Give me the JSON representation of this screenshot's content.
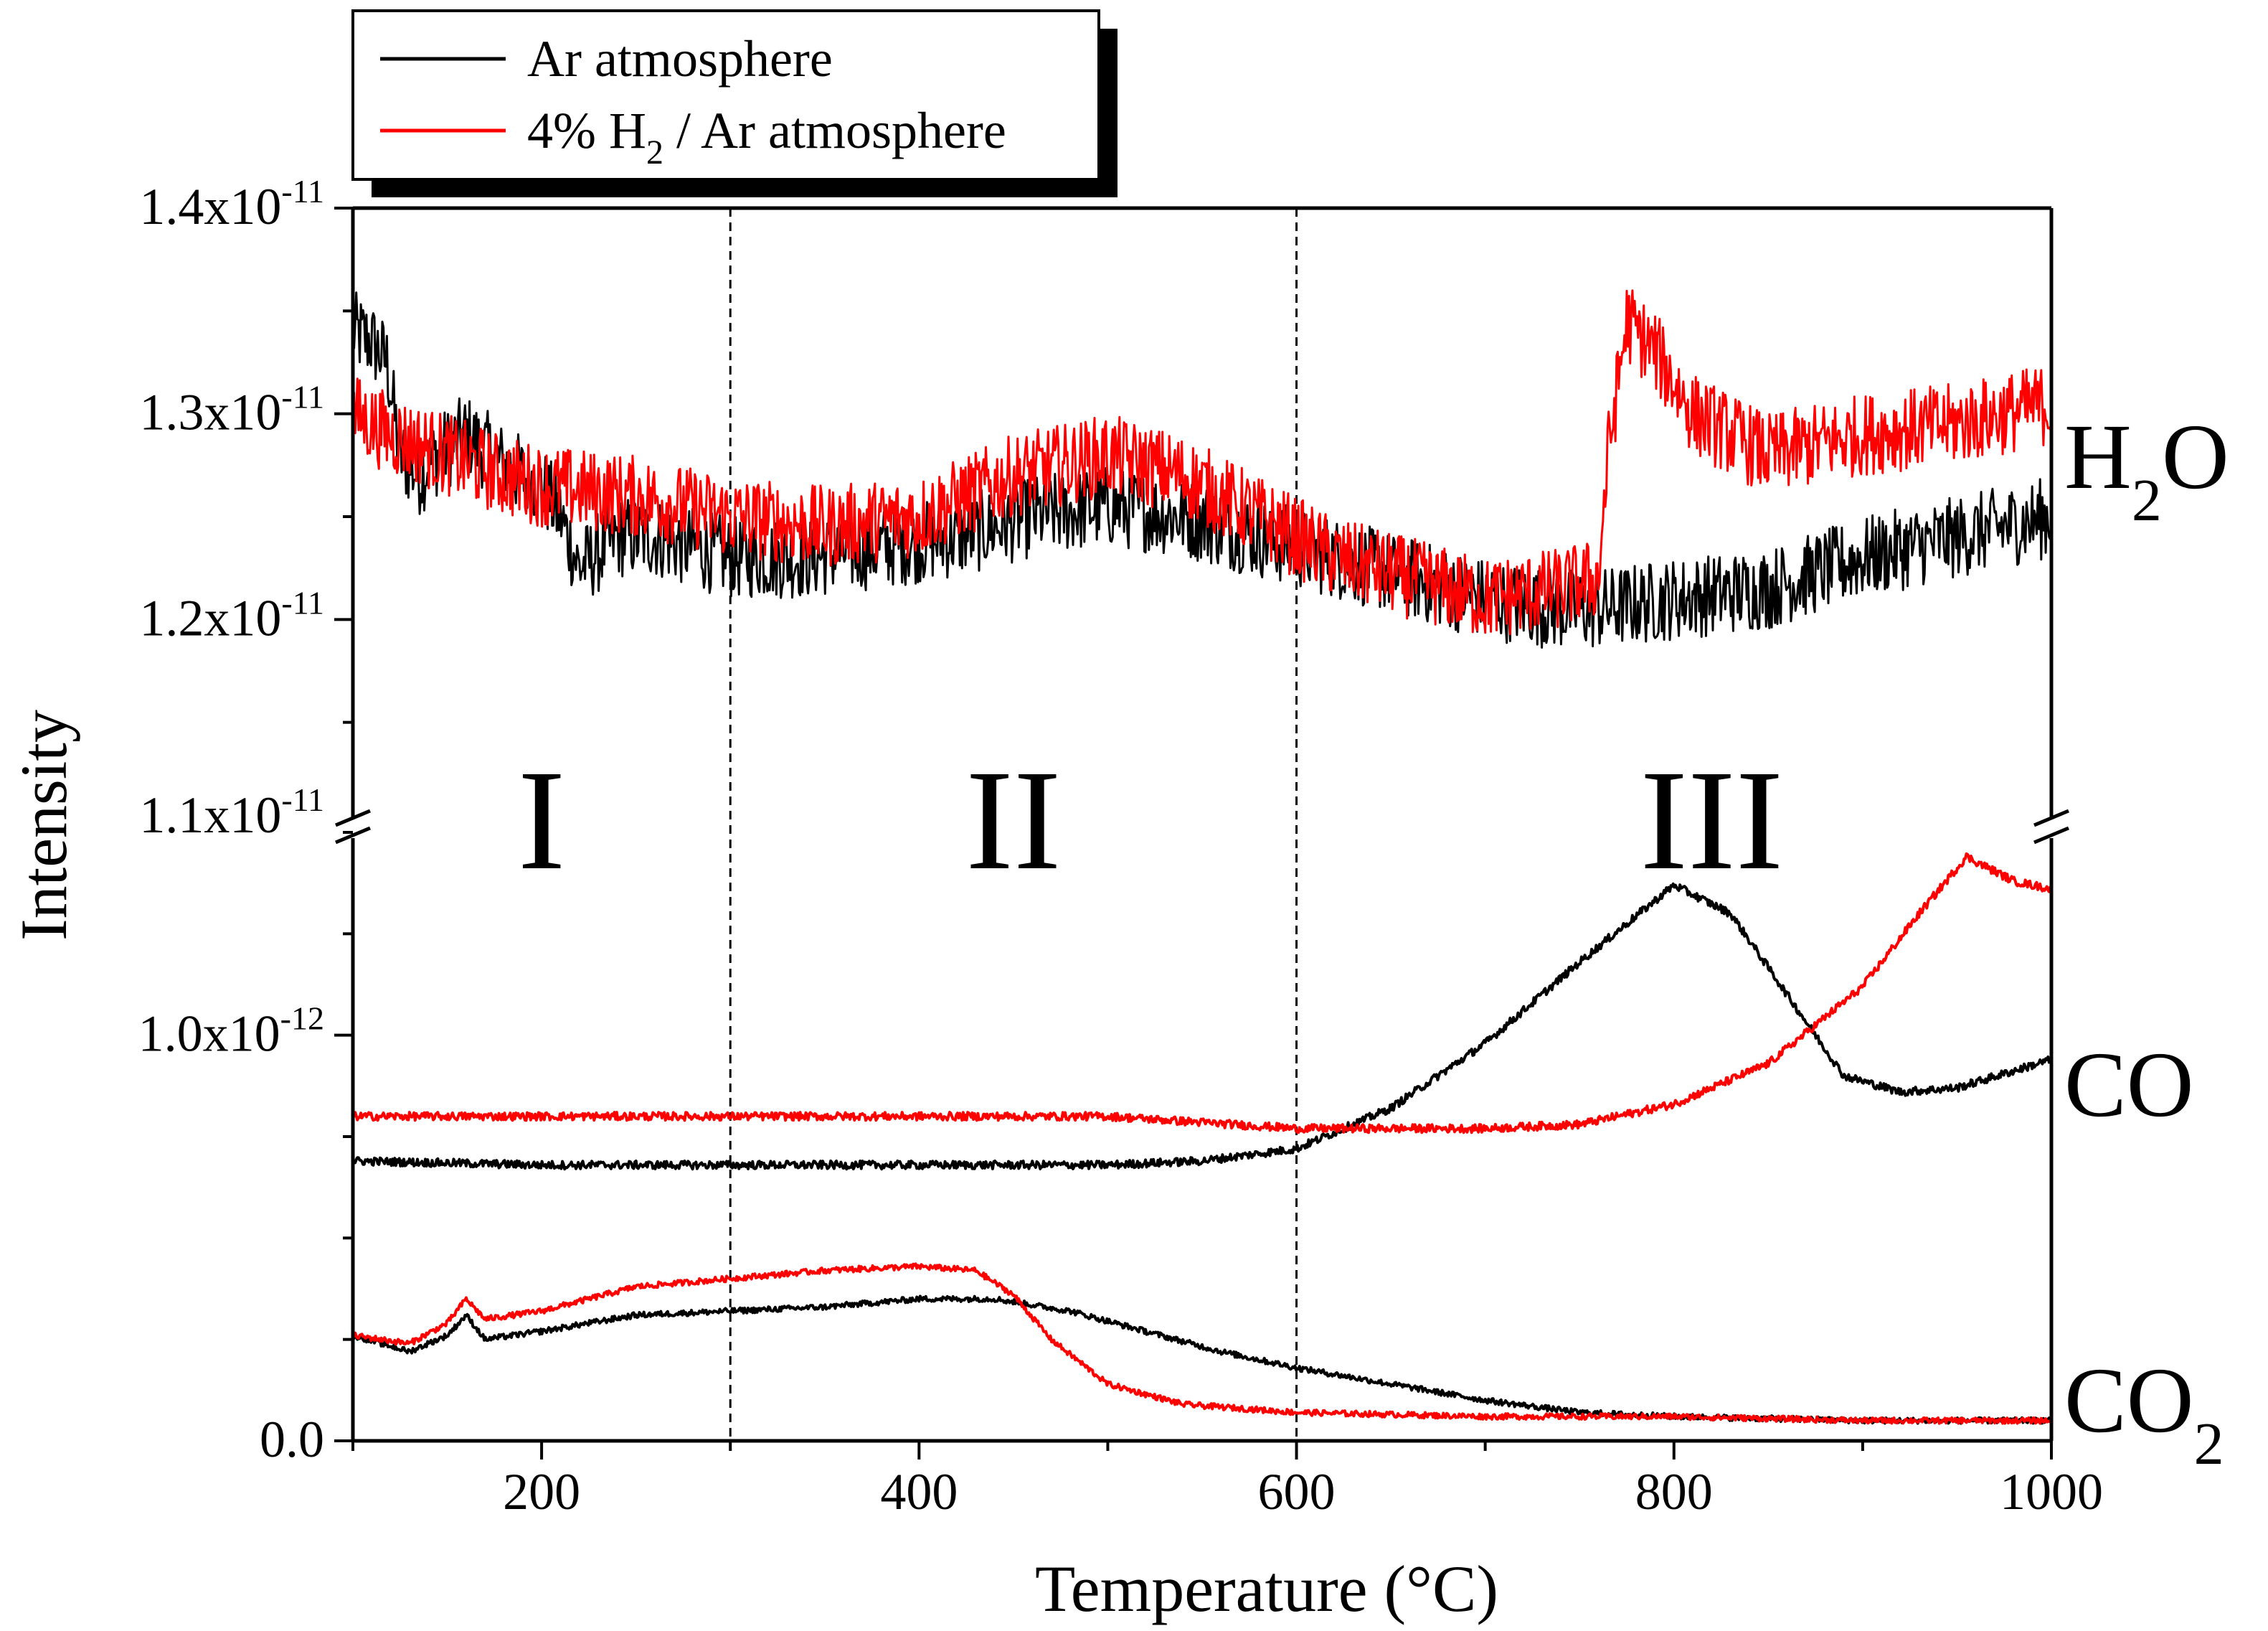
{
  "chart_data": {
    "type": "line",
    "xlabel": "Temperature (°C)",
    "ylabel": "Intensity",
    "xlim": [
      100,
      1000
    ],
    "x_ticks": [
      "200",
      "400",
      "600",
      "800",
      "1000"
    ],
    "axis_break": true,
    "upper_panel": {
      "ylim": [
        1.1e-11,
        1.4e-11
      ],
      "tick_labels": [
        {
          "value": 1.4e-11,
          "mantissa": "1.4x10",
          "exponent": "-11"
        },
        {
          "value": 1.3e-11,
          "mantissa": "1.3x10",
          "exponent": "-11"
        },
        {
          "value": 1.2e-11,
          "mantissa": "1.2x10",
          "exponent": "-11"
        },
        {
          "value": 1.1e-11,
          "mantissa": "1.1x10",
          "exponent": "-11"
        }
      ]
    },
    "lower_panel": {
      "ylim": [
        0,
        1.5e-12
      ],
      "tick_labels": [
        {
          "value": 1e-12,
          "mantissa": "1.0x10",
          "exponent": "-12"
        },
        {
          "value": 0,
          "mantissa": "0.0",
          "exponent": ""
        }
      ]
    },
    "region_dividers": [
      300,
      600
    ],
    "regions": [
      {
        "label": "I",
        "x": 200
      },
      {
        "label": "II",
        "x": 450
      },
      {
        "label": "III",
        "x": 820
      }
    ],
    "species_labels": {
      "h2o": {
        "base": "H",
        "sub": "2",
        "tail": "O"
      },
      "co": {
        "base": "CO"
      },
      "co2": {
        "base": "CO",
        "sub": "2"
      }
    },
    "legend": {
      "position": "top-left",
      "entries": [
        {
          "series": "Ar",
          "text": "Ar atmosphere"
        },
        {
          "series": "H2Ar",
          "prefix": "4% H",
          "sub": "2",
          "suffix": " / Ar atmosphere"
        }
      ]
    },
    "colors": {
      "Ar": "#000000",
      "H2Ar": "#ff0000"
    },
    "series": [
      {
        "name": "Ar atmosphere",
        "key": "Ar",
        "species": "H2O",
        "panel": "upper",
        "noise": 2e-13,
        "x": [
          100,
          110,
          118,
          125,
          135,
          145,
          160,
          180,
          200,
          210,
          220,
          240,
          260,
          300,
          340,
          380,
          420,
          460,
          500,
          540,
          580,
          620,
          660,
          700,
          740,
          760,
          800,
          850,
          900,
          950,
          1000
        ],
        "y": [
          1.34e-11,
          1.335e-11,
          1.325e-11,
          1.28e-11,
          1.27e-11,
          1.28e-11,
          1.29e-11,
          1.275e-11,
          1.265e-11,
          1.25e-11,
          1.225e-11,
          1.24e-11,
          1.24e-11,
          1.23e-11,
          1.23e-11,
          1.235e-11,
          1.24e-11,
          1.25e-11,
          1.255e-11,
          1.25e-11,
          1.24e-11,
          1.23e-11,
          1.22e-11,
          1.21e-11,
          1.205e-11,
          1.205e-11,
          1.21e-11,
          1.215e-11,
          1.23e-11,
          1.24e-11,
          1.25e-11
        ]
      },
      {
        "name": "4% H2 / Ar atmosphere",
        "key": "H2Ar",
        "species": "H2O",
        "panel": "upper",
        "noise": 2e-13,
        "x": [
          100,
          120,
          150,
          180,
          200,
          250,
          300,
          350,
          400,
          450,
          500,
          540,
          580,
          620,
          660,
          700,
          740,
          760,
          765,
          775,
          790,
          810,
          850,
          900,
          950,
          1000
        ],
        "y": [
          1.3e-11,
          1.29e-11,
          1.28e-11,
          1.27e-11,
          1.265e-11,
          1.26e-11,
          1.25e-11,
          1.245e-11,
          1.25e-11,
          1.27e-11,
          1.28e-11,
          1.27e-11,
          1.25e-11,
          1.23e-11,
          1.22e-11,
          1.21e-11,
          1.215e-11,
          1.22e-11,
          1.28e-11,
          1.345e-11,
          1.33e-11,
          1.3e-11,
          1.28e-11,
          1.29e-11,
          1.295e-11,
          1.305e-11
        ]
      },
      {
        "name": "Ar atmosphere",
        "key": "Ar",
        "species": "CO",
        "panel": "lower",
        "noise": 1e-14,
        "x": [
          100,
          200,
          300,
          400,
          500,
          550,
          600,
          650,
          700,
          750,
          800,
          830,
          860,
          890,
          920,
          950,
          1000
        ],
        "y": [
          6.9e-13,
          6.8e-13,
          6.8e-13,
          6.8e-13,
          6.8e-13,
          6.9e-13,
          7.2e-13,
          8.2e-13,
          9.8e-13,
          1.18e-12,
          1.37e-12,
          1.3e-12,
          1.1e-12,
          9e-13,
          8.6e-13,
          8.7e-13,
          9.4e-13
        ]
      },
      {
        "name": "4% H2 / Ar atmosphere",
        "key": "H2Ar",
        "species": "CO",
        "panel": "lower",
        "noise": 1e-14,
        "x": [
          100,
          200,
          300,
          400,
          500,
          600,
          700,
          750,
          800,
          850,
          900,
          930,
          955,
          980,
          1000
        ],
        "y": [
          8e-13,
          8e-13,
          8e-13,
          8e-13,
          8e-13,
          7.7e-13,
          7.7e-13,
          7.8e-13,
          8.3e-13,
          9.3e-13,
          1.12e-12,
          1.3e-12,
          1.44e-12,
          1.38e-12,
          1.36e-12
        ]
      },
      {
        "name": "Ar atmosphere",
        "key": "Ar",
        "species": "CO2",
        "panel": "lower",
        "noise": 7e-15,
        "x": [
          100,
          130,
          150,
          160,
          170,
          200,
          250,
          300,
          350,
          400,
          440,
          480,
          520,
          560,
          600,
          650,
          700,
          750,
          800,
          900,
          1000
        ],
        "y": [
          2.6e-13,
          2.2e-13,
          2.6e-13,
          3.1e-13,
          2.5e-13,
          2.7e-13,
          3.1e-13,
          3.2e-13,
          3.3e-13,
          3.5e-13,
          3.5e-13,
          3.2e-13,
          2.7e-13,
          2.2e-13,
          1.8e-13,
          1.4e-13,
          1e-13,
          7e-14,
          6e-14,
          5e-14,
          5e-14
        ]
      },
      {
        "name": "4% H2 / Ar atmosphere",
        "key": "H2Ar",
        "species": "CO2",
        "panel": "lower",
        "noise": 7e-15,
        "x": [
          100,
          130,
          150,
          160,
          170,
          200,
          250,
          300,
          350,
          400,
          430,
          450,
          470,
          500,
          540,
          600,
          700,
          800,
          900,
          1000
        ],
        "y": [
          2.6e-13,
          2.4e-13,
          2.9e-13,
          3.5e-13,
          3e-13,
          3.2e-13,
          3.8e-13,
          4e-13,
          4.2e-13,
          4.3e-13,
          4.2e-13,
          3.6e-13,
          2.5e-13,
          1.4e-13,
          9e-14,
          7e-14,
          6e-14,
          6e-14,
          5e-14,
          5e-14
        ]
      }
    ]
  }
}
